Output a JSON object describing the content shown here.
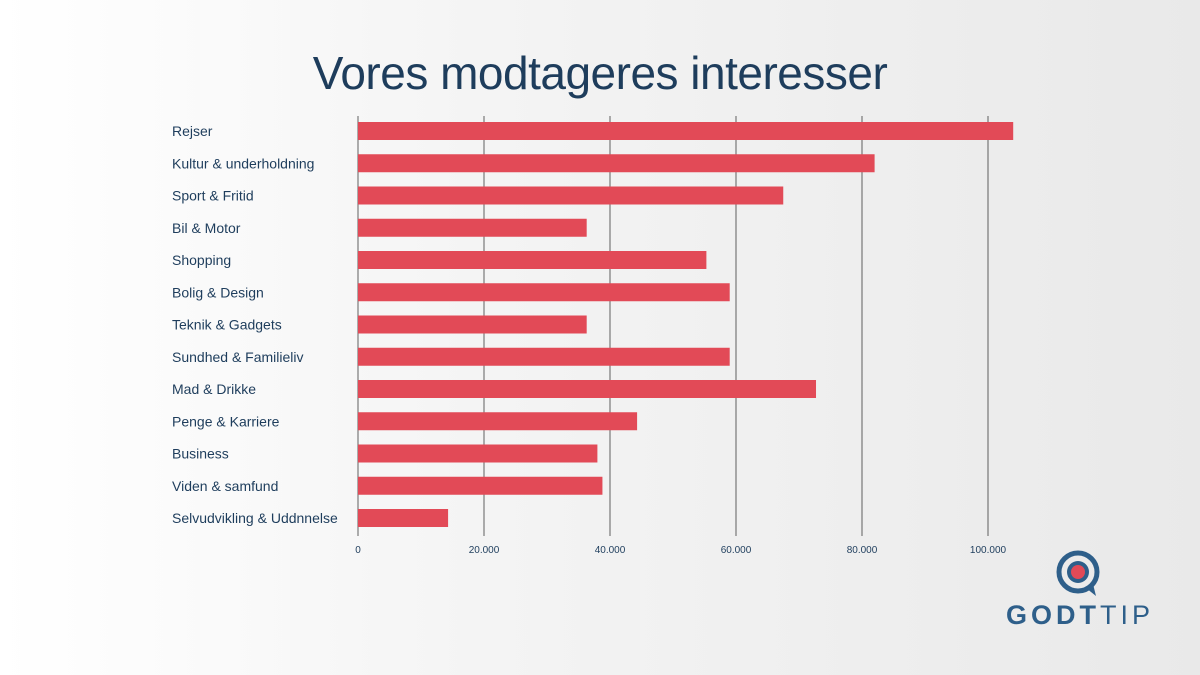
{
  "title": "Vores modtageres interesser",
  "chart_data": {
    "type": "bar",
    "orientation": "horizontal",
    "title": "Vores modtageres interesser",
    "xlabel": "",
    "ylabel": "",
    "xlim": [
      0,
      100000
    ],
    "grid": true,
    "categories": [
      "Rejser",
      "Kultur & underholdning",
      "Sport & Fritid",
      "Bil & Motor",
      "Shopping",
      "Bolig & Design",
      "Teknik & Gadgets",
      "Sundhed & Familieliv",
      "Mad & Drikke",
      "Penge & Karriere",
      "Business",
      "Viden & samfund",
      "Selvudvikling & Uddnnelse"
    ],
    "values": [
      104000,
      82000,
      67500,
      36300,
      55300,
      59000,
      36300,
      59000,
      72700,
      44300,
      38000,
      38800,
      14300
    ],
    "ticks": [
      "0",
      "20.000",
      "40.000",
      "60.000",
      "80.000",
      "100.000"
    ],
    "tick_values": [
      0,
      20000,
      40000,
      60000,
      80000,
      100000
    ],
    "bar_color": "#e24a57",
    "grid_color": "#3a3a3a"
  },
  "logo": {
    "text_bold": "GODT",
    "text_light": "TIP",
    "ring_color": "#2e5f8a",
    "dot_color": "#e24a57"
  }
}
